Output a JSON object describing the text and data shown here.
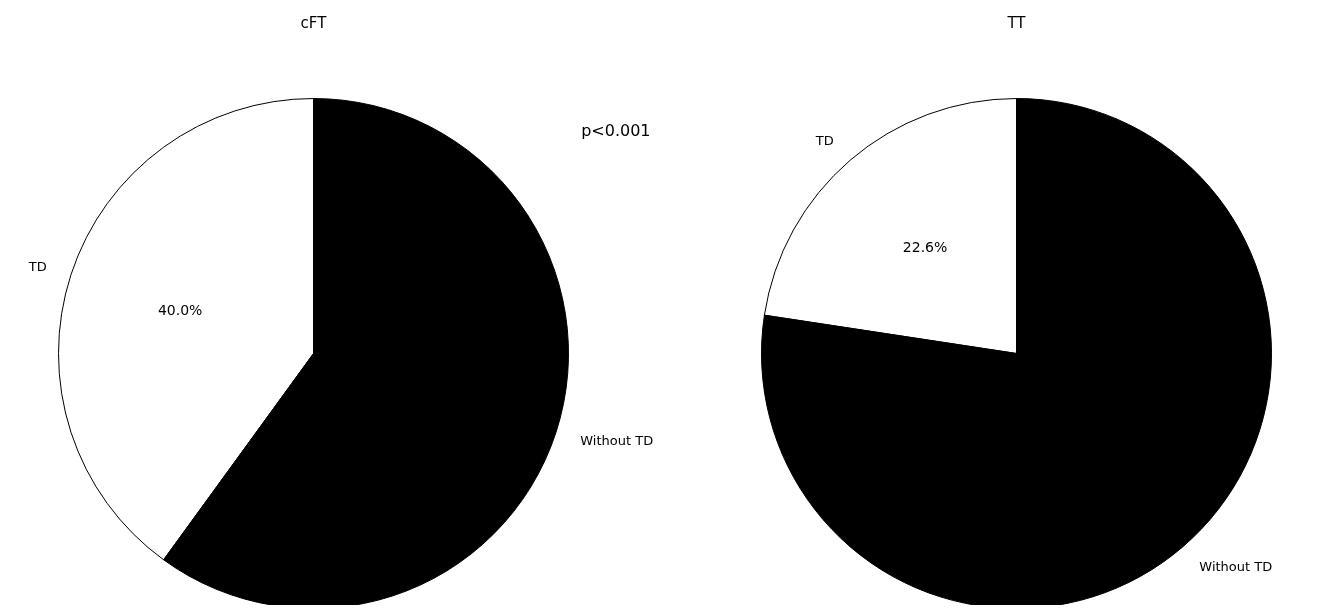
{
  "chart_data": [
    {
      "type": "pie",
      "title": "cFT",
      "categories": [
        "TD",
        "Without TD"
      ],
      "values": [
        40.0,
        60.0
      ],
      "colors": [
        "#ffffff",
        "#000000"
      ],
      "value_labels": [
        "40.0%",
        null
      ],
      "annotations": [
        "p<0.001"
      ]
    },
    {
      "type": "pie",
      "title": "TT",
      "categories": [
        "TD",
        "Without TD"
      ],
      "values": [
        22.6,
        77.4
      ],
      "colors": [
        "#ffffff",
        "#000000"
      ],
      "value_labels": [
        "22.6%",
        null
      ]
    }
  ]
}
